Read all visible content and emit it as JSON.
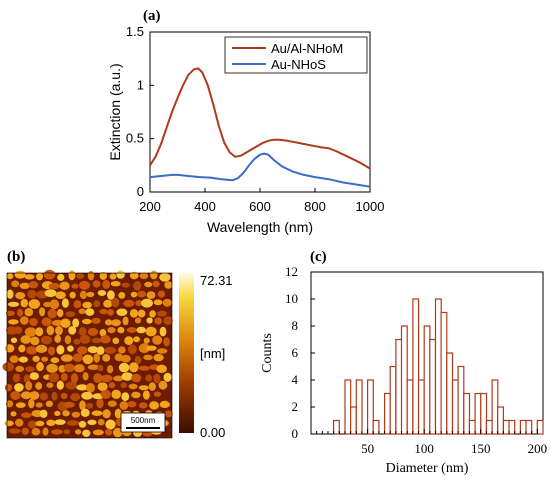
{
  "panels": {
    "a": "(a)",
    "b": "(b)",
    "c": "(c)"
  },
  "chart_data": [
    {
      "panel": "(a)",
      "type": "line",
      "xlabel": "Wavelength (nm)",
      "ylabel": "Extinction (a.u.)",
      "xlim": [
        200,
        1000
      ],
      "ylim": [
        0,
        1.5
      ],
      "xticks": [
        "200",
        "400",
        "600",
        "800",
        "1000"
      ],
      "yticks": [
        "0",
        "0.5",
        "1",
        "1.5"
      ],
      "grid": false,
      "legend": "top-right",
      "series": [
        {
          "name": "Au/Al-NHoM",
          "color": "#b03a1c",
          "x": [
            200,
            220,
            240,
            260,
            280,
            300,
            320,
            340,
            360,
            375,
            390,
            410,
            430,
            450,
            470,
            490,
            510,
            530,
            550,
            570,
            590,
            610,
            630,
            650,
            670,
            700,
            740,
            780,
            820,
            850,
            880,
            920,
            960,
            1000
          ],
          "y": [
            0.25,
            0.33,
            0.45,
            0.6,
            0.75,
            0.88,
            1.0,
            1.1,
            1.15,
            1.16,
            1.12,
            1.0,
            0.82,
            0.62,
            0.46,
            0.37,
            0.33,
            0.34,
            0.37,
            0.4,
            0.43,
            0.46,
            0.48,
            0.49,
            0.49,
            0.48,
            0.46,
            0.44,
            0.42,
            0.41,
            0.38,
            0.33,
            0.28,
            0.22
          ]
        },
        {
          "name": "Au-NHoS",
          "color": "#3a6cc8",
          "x": [
            200,
            240,
            280,
            300,
            340,
            380,
            420,
            460,
            500,
            520,
            540,
            560,
            580,
            600,
            615,
            630,
            650,
            680,
            720,
            760,
            800,
            850,
            900,
            950,
            1000
          ],
          "y": [
            0.14,
            0.15,
            0.16,
            0.16,
            0.15,
            0.14,
            0.135,
            0.12,
            0.11,
            0.13,
            0.18,
            0.25,
            0.31,
            0.35,
            0.36,
            0.35,
            0.3,
            0.24,
            0.19,
            0.16,
            0.14,
            0.12,
            0.09,
            0.07,
            0.05
          ]
        }
      ]
    },
    {
      "panel": "(b)",
      "type": "heatmap",
      "colorbar_max": "72.31",
      "colorbar_min": "0.00",
      "colorbar_unit": "[nm]",
      "scalebar_label": "500nm"
    },
    {
      "panel": "(c)",
      "type": "bar",
      "xlabel": "Diameter (nm)",
      "ylabel": "Counts",
      "xlim": [
        0,
        205
      ],
      "ylim": [
        0,
        12
      ],
      "xticks": [
        "50",
        "100",
        "150",
        "200"
      ],
      "yticks": [
        "0",
        "2",
        "4",
        "6",
        "8",
        "10",
        "12"
      ],
      "bin_width": 5,
      "bin_left": [
        20,
        25,
        30,
        35,
        40,
        45,
        50,
        55,
        60,
        65,
        70,
        75,
        80,
        85,
        90,
        95,
        100,
        105,
        110,
        115,
        120,
        125,
        130,
        135,
        140,
        145,
        150,
        155,
        160,
        165,
        170,
        175,
        180,
        185,
        190,
        195,
        200
      ],
      "counts": [
        1,
        0,
        4,
        2,
        4,
        0,
        4,
        1,
        0,
        3,
        5,
        7,
        8,
        4,
        10,
        4,
        8,
        7,
        10,
        9,
        6,
        4,
        5,
        3,
        1,
        3,
        3,
        1,
        4,
        2,
        1,
        1,
        0,
        1,
        1,
        0,
        1
      ],
      "color": "#b03a1c"
    }
  ]
}
